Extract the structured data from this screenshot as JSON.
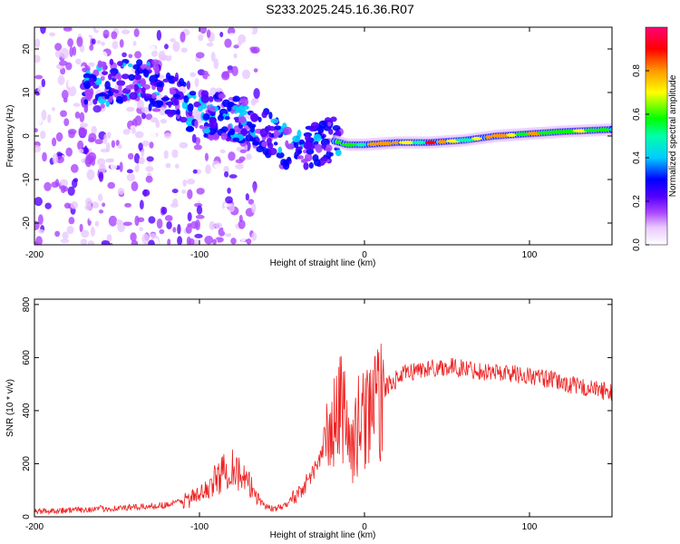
{
  "title": "S233.2025.245.16.36.R07",
  "chart_data": [
    {
      "type": "heatmap",
      "title": "S233.2025.245.16.36.R07",
      "xlabel": "Height of straight line (km)",
      "ylabel": "Frequency (Hz)",
      "xlim": [
        -200,
        150
      ],
      "ylim": [
        -25,
        25
      ],
      "xticks": [
        -200,
        -100,
        0,
        100
      ],
      "yticks": [
        -20,
        -10,
        0,
        10,
        20
      ],
      "colorbar": {
        "label": "Normalized spectral amplitude",
        "range": [
          0,
          1
        ],
        "ticks": [
          0.0,
          0.2,
          0.4,
          0.6,
          0.8
        ]
      },
      "ridge": {
        "x": [
          -200,
          -180,
          -160,
          -140,
          -120,
          -100,
          -80,
          -60,
          -50,
          -40,
          -30,
          -20,
          -10,
          0,
          20,
          40,
          60,
          80,
          100,
          120,
          150
        ],
        "y": [
          8,
          10,
          12,
          13,
          10,
          5,
          4,
          1,
          -2,
          -3,
          -2,
          -1,
          -2,
          -2,
          -1.5,
          -1.5,
          -1,
          0,
          0.5,
          1,
          1.5
        ]
      }
    },
    {
      "type": "line",
      "xlabel": "Height of straight line (km)",
      "ylabel": "SNR (10 * v/v)",
      "xlim": [
        -200,
        150
      ],
      "ylim": [
        0,
        820
      ],
      "xticks": [
        -200,
        -100,
        0,
        100
      ],
      "yticks": [
        0,
        200,
        400,
        600,
        800
      ],
      "series": [
        {
          "name": "SNR",
          "color": "#ee2222",
          "x": [
            -200,
            -180,
            -160,
            -140,
            -120,
            -110,
            -100,
            -95,
            -90,
            -85,
            -80,
            -78,
            -75,
            -70,
            -65,
            -60,
            -55,
            -50,
            -45,
            -40,
            -35,
            -30,
            -25,
            -22,
            -20,
            -18,
            -15,
            -13,
            -12,
            -10,
            -8,
            -5,
            -3,
            0,
            3,
            5,
            7,
            10,
            12,
            15,
            20,
            25,
            30,
            40,
            50,
            60,
            70,
            80,
            90,
            100,
            110,
            120,
            130,
            140,
            150
          ],
          "values": [
            20,
            25,
            30,
            35,
            45,
            60,
            80,
            110,
            140,
            170,
            200,
            180,
            150,
            120,
            80,
            40,
            30,
            35,
            60,
            90,
            130,
            180,
            250,
            300,
            330,
            350,
            400,
            420,
            450,
            300,
            250,
            300,
            380,
            350,
            450,
            420,
            400,
            450,
            480,
            500,
            520,
            540,
            550,
            560,
            565,
            560,
            550,
            545,
            540,
            530,
            520,
            505,
            490,
            480,
            470
          ]
        }
      ]
    }
  ]
}
